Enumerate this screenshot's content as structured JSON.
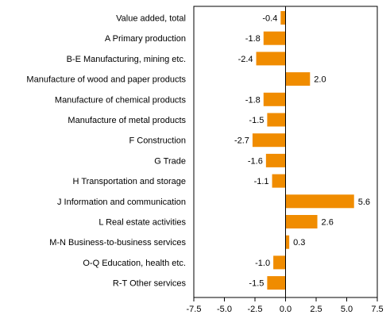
{
  "chart_data": {
    "type": "bar",
    "orientation": "horizontal",
    "categories": [
      "Value added, total",
      "A Primary production",
      "B-E Manufacturing, mining etc.",
      "Manufacture of wood and paper products",
      "Manufacture of chemical products",
      "Manufacture of metal products",
      "F Construction",
      "G Trade",
      "H Transportation and storage",
      "J Information and communication",
      "L Real estate activities",
      "M-N Business-to-business services",
      "O-Q Education, health etc.",
      "R-T Other services"
    ],
    "values": [
      -0.4,
      -1.8,
      -2.4,
      2.0,
      -1.8,
      -1.5,
      -2.7,
      -1.6,
      -1.1,
      5.6,
      2.6,
      0.3,
      -1.0,
      -1.5
    ],
    "value_labels": [
      "-0.4",
      "-1.8",
      "-2.4",
      "2.0",
      "-1.8",
      "-1.5",
      "-2.7",
      "-1.6",
      "-1.1",
      "5.6",
      "2.6",
      "0.3",
      "-1.0",
      "-1.5"
    ],
    "xlim": [
      -7.5,
      7.5
    ],
    "xticks": [
      -7.5,
      -5.0,
      -2.5,
      0.0,
      2.5,
      5.0,
      7.5
    ],
    "xtick_labels": [
      "-7.5",
      "-5.0",
      "-2.5",
      "0.0",
      "2.5",
      "5.0",
      "7.5"
    ],
    "title": "",
    "xlabel": "",
    "ylabel": "",
    "grid": false,
    "legend": "none",
    "colors": {
      "bar": "#F08C00",
      "axis": "#000000",
      "text": "#000000"
    }
  }
}
